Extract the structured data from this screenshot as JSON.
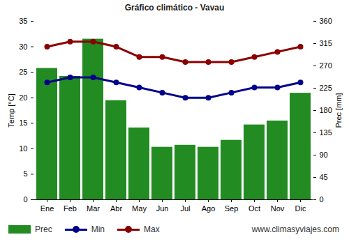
{
  "chart_data": {
    "type": "combo",
    "title": "Gráfico climático - Vavau",
    "caption": "www.climasyviajes.com",
    "categories": [
      "Ene",
      "Feb",
      "Mar",
      "Abr",
      "May",
      "Jun",
      "Jul",
      "Ago",
      "Sep",
      "Oct",
      "Nov",
      "Dic"
    ],
    "ylabel": "Temp [°C]",
    "y2label": "Prec [mm]",
    "ylim": [
      0,
      35
    ],
    "yticks": [
      0,
      5,
      10,
      15,
      20,
      25,
      30,
      35
    ],
    "y2lim": [
      0,
      360
    ],
    "y2ticks": [
      0,
      45,
      90,
      135,
      180,
      225,
      270,
      315,
      360
    ],
    "grid": false,
    "legend": "bottom",
    "series": [
      {
        "name": "Prec",
        "type": "bar",
        "axis": "y2",
        "color": "#228b22",
        "values": [
          265,
          249,
          324,
          200,
          145,
          106,
          110,
          106,
          120,
          151,
          159,
          215
        ]
      },
      {
        "name": "Min",
        "type": "line",
        "marker": "circle",
        "color": "#00008b",
        "values": [
          23,
          24,
          24,
          23,
          22,
          21,
          20,
          20,
          21,
          22,
          22,
          23
        ]
      },
      {
        "name": "Max",
        "type": "line",
        "marker": "circle",
        "color": "#8b0000",
        "values": [
          30,
          31,
          31,
          30,
          28,
          28,
          27,
          27,
          27,
          28,
          29,
          30
        ]
      }
    ]
  }
}
